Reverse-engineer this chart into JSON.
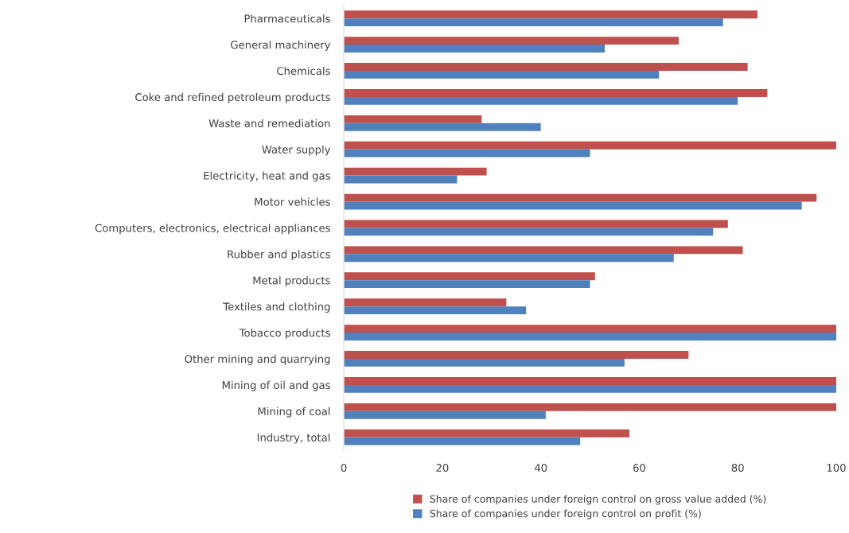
{
  "chart_data": {
    "type": "bar",
    "orientation": "horizontal",
    "categories": [
      "Pharmaceuticals",
      "General machinery",
      "Chemicals",
      "Coke and refined petroleum products",
      "Waste and remediation",
      "Water supply",
      "Electricity, heat and gas",
      "Motor vehicles",
      "Computers, electronics, electrical appliances",
      "Rubber and plastics",
      "Metal products",
      "Textiles and clothing",
      "Tobacco products",
      "Other mining and quarrying",
      "Mining of oil and gas",
      "Mining of coal",
      "Industry, total"
    ],
    "series": [
      {
        "name": "Share of companies under foreign control on gross value added (%)",
        "color": "#c0504d",
        "values": [
          84,
          68,
          82,
          86,
          28,
          100,
          29,
          96,
          78,
          81,
          51,
          33,
          100,
          70,
          100,
          100,
          58
        ]
      },
      {
        "name": "Share of companies under foreign control on profit (%)",
        "color": "#4f81bd",
        "values": [
          77,
          53,
          64,
          80,
          40,
          50,
          23,
          93,
          75,
          67,
          50,
          37,
          100,
          57,
          100,
          41,
          48
        ]
      }
    ],
    "xlim": [
      0,
      100
    ],
    "xticks": [
      0,
      20,
      40,
      60,
      80,
      100
    ],
    "grid": false,
    "legend": "bottom"
  }
}
